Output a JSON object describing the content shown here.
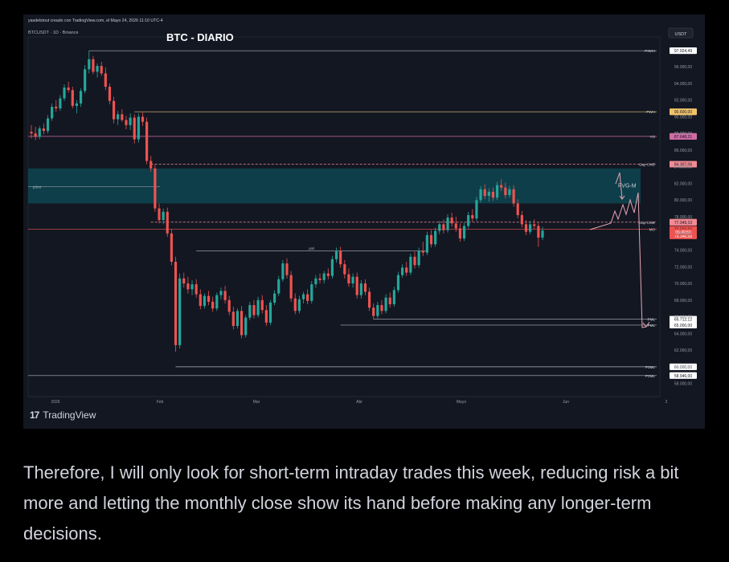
{
  "header": {
    "credit": "yasdelstout creado con TradingView.com, el Mayo 24, 2026 11:10 UTC-4",
    "symbol": "BTCUSDT · 1D · Binance",
    "title": "BTC - DIARIO",
    "currency": "USDT"
  },
  "footer": {
    "brand": "TradingView",
    "caption": "Therefore, I will only look for short-term intraday trades this week, reducing risk a bit more and letting the monthly close show its hand before making any longer-term decisions."
  },
  "colors": {
    "background": "#131722",
    "bull": "#26a69a",
    "bear": "#ef5350",
    "fvg": "#0e4c57",
    "arrow": "#e6a5b4"
  },
  "chart_data": {
    "type": "candlestick",
    "title": "BTC - DIARIO",
    "ylim": [
      57000,
      99000
    ],
    "y_ticks": [
      "96.000,00",
      "94.000,00",
      "92.000,00",
      "90.000,00",
      "88.000,00",
      "86.000,00",
      "84.000,00",
      "82.000,00",
      "80.000,00",
      "78.000,00",
      "76.000,00",
      "74.000,00",
      "72.000,00",
      "70.000,00",
      "68.000,00",
      "66.000,00",
      "64.000,00",
      "62.000,00",
      "60.000,00",
      "58.000,00"
    ],
    "x_labels": [
      "2026",
      "Feb",
      "Mar",
      "Abr",
      "Mayo",
      "Jun",
      "2"
    ],
    "levels": [
      {
        "name": "P3MH",
        "price": 97924.49,
        "label": "97.924,49",
        "color": "#b2b5be",
        "style": "solid"
      },
      {
        "name": "PWH",
        "price": 90600,
        "label": "90.600,00",
        "color": "#f0c36b",
        "style": "solid"
      },
      {
        "name": "YO",
        "price": 87648.21,
        "label": "87.648,21",
        "color": "#d16ba5",
        "style": "solid"
      },
      {
        "name": "Gap CME",
        "price": 84307.06,
        "label": "84.307,06",
        "color": "#f28b94",
        "style": "dashed"
      },
      {
        "name": "Gap CME",
        "price": 77349.1,
        "label": "77.349,10",
        "color": "#f28b94",
        "style": "dashed"
      },
      {
        "name": "MO",
        "price": 76500,
        "label": "76.500,00",
        "color": "#ef5350",
        "style": "solid"
      },
      {
        "name": "PML",
        "price": 65712.12,
        "label": "65.712,12",
        "color": "#b2b5be",
        "style": "solid"
      },
      {
        "name": "PML",
        "price": 65000,
        "label": "65.000,00",
        "color": "#b2b5be",
        "style": "solid"
      },
      {
        "name": "P3ML",
        "price": 60000,
        "label": "60.000,00",
        "color": "#b2b5be",
        "style": "solid"
      },
      {
        "name": "P3ML",
        "price": 58946,
        "label": "58.946,00",
        "color": "#b2b5be",
        "style": "solid"
      }
    ],
    "extra_price_labels": [
      {
        "text": "76.346,58",
        "price": 75700,
        "color": "#ef5350"
      },
      {
        "text": "06:49:50",
        "price": 76150,
        "color": "#ef5350"
      }
    ],
    "zone": {
      "label": "FVG-M",
      "top": 83800,
      "bottom": 79600
    },
    "pdh_label": "p3mi",
    "pml_label": "pml",
    "candles": [
      {
        "o": 88200,
        "h": 89000,
        "l": 87400,
        "c": 88000
      },
      {
        "o": 88000,
        "h": 88800,
        "l": 87200,
        "c": 87600
      },
      {
        "o": 87600,
        "h": 88900,
        "l": 87300,
        "c": 88600
      },
      {
        "o": 88600,
        "h": 89200,
        "l": 87900,
        "c": 88300
      },
      {
        "o": 88300,
        "h": 90200,
        "l": 88000,
        "c": 89800
      },
      {
        "o": 89800,
        "h": 91600,
        "l": 89500,
        "c": 91200
      },
      {
        "o": 91200,
        "h": 92000,
        "l": 90600,
        "c": 91000
      },
      {
        "o": 91000,
        "h": 92600,
        "l": 90700,
        "c": 92200
      },
      {
        "o": 92200,
        "h": 93900,
        "l": 91900,
        "c": 93500
      },
      {
        "o": 93500,
        "h": 94200,
        "l": 92900,
        "c": 93200
      },
      {
        "o": 93200,
        "h": 93600,
        "l": 91000,
        "c": 91300
      },
      {
        "o": 91300,
        "h": 92000,
        "l": 90400,
        "c": 91600
      },
      {
        "o": 91600,
        "h": 93400,
        "l": 91200,
        "c": 93100
      },
      {
        "o": 93100,
        "h": 96200,
        "l": 92800,
        "c": 95700
      },
      {
        "o": 95700,
        "h": 97924,
        "l": 95200,
        "c": 96900
      },
      {
        "o": 96900,
        "h": 97300,
        "l": 95100,
        "c": 95400
      },
      {
        "o": 95400,
        "h": 96400,
        "l": 94700,
        "c": 96100
      },
      {
        "o": 96100,
        "h": 96600,
        "l": 94900,
        "c": 95200
      },
      {
        "o": 95200,
        "h": 95900,
        "l": 93200,
        "c": 93600
      },
      {
        "o": 93600,
        "h": 94000,
        "l": 91500,
        "c": 91900
      },
      {
        "o": 91900,
        "h": 92400,
        "l": 89200,
        "c": 89700
      },
      {
        "o": 89700,
        "h": 90700,
        "l": 89000,
        "c": 90300
      },
      {
        "o": 90300,
        "h": 90900,
        "l": 89400,
        "c": 89600
      },
      {
        "o": 89600,
        "h": 90100,
        "l": 88500,
        "c": 89000
      },
      {
        "o": 89000,
        "h": 90400,
        "l": 88400,
        "c": 89900
      },
      {
        "o": 89900,
        "h": 90300,
        "l": 86800,
        "c": 87300
      },
      {
        "o": 87300,
        "h": 90400,
        "l": 86900,
        "c": 90000
      },
      {
        "o": 90000,
        "h": 90500,
        "l": 88900,
        "c": 89400
      },
      {
        "o": 89400,
        "h": 89900,
        "l": 84300,
        "c": 84700
      },
      {
        "o": 84700,
        "h": 85300,
        "l": 83400,
        "c": 83800
      },
      {
        "o": 83800,
        "h": 84300,
        "l": 78600,
        "c": 79000
      },
      {
        "o": 79000,
        "h": 79600,
        "l": 77200,
        "c": 77600
      },
      {
        "o": 77600,
        "h": 79000,
        "l": 77100,
        "c": 78600
      },
      {
        "o": 78600,
        "h": 79100,
        "l": 75600,
        "c": 76000
      },
      {
        "o": 76000,
        "h": 76500,
        "l": 72200,
        "c": 72600
      },
      {
        "o": 72600,
        "h": 73200,
        "l": 61800,
        "c": 62600
      },
      {
        "o": 62600,
        "h": 71200,
        "l": 62200,
        "c": 70600
      },
      {
        "o": 70600,
        "h": 71300,
        "l": 69500,
        "c": 70000
      },
      {
        "o": 70000,
        "h": 70800,
        "l": 68800,
        "c": 69300
      },
      {
        "o": 69300,
        "h": 70400,
        "l": 68600,
        "c": 69900
      },
      {
        "o": 69900,
        "h": 70500,
        "l": 68300,
        "c": 68700
      },
      {
        "o": 68700,
        "h": 69300,
        "l": 66900,
        "c": 67300
      },
      {
        "o": 67300,
        "h": 68800,
        "l": 67000,
        "c": 68500
      },
      {
        "o": 68500,
        "h": 69100,
        "l": 67400,
        "c": 67800
      },
      {
        "o": 67800,
        "h": 68400,
        "l": 66600,
        "c": 67000
      },
      {
        "o": 67000,
        "h": 68900,
        "l": 66700,
        "c": 68600
      },
      {
        "o": 68600,
        "h": 69500,
        "l": 68100,
        "c": 69100
      },
      {
        "o": 69100,
        "h": 69700,
        "l": 67600,
        "c": 68000
      },
      {
        "o": 68000,
        "h": 68500,
        "l": 66200,
        "c": 66600
      },
      {
        "o": 66600,
        "h": 67200,
        "l": 64500,
        "c": 64900
      },
      {
        "o": 64900,
        "h": 67000,
        "l": 64600,
        "c": 66700
      },
      {
        "o": 66700,
        "h": 67300,
        "l": 63400,
        "c": 63800
      },
      {
        "o": 63800,
        "h": 66200,
        "l": 63500,
        "c": 65900
      },
      {
        "o": 65900,
        "h": 67800,
        "l": 65600,
        "c": 67400
      },
      {
        "o": 67400,
        "h": 68000,
        "l": 65800,
        "c": 66200
      },
      {
        "o": 66200,
        "h": 68400,
        "l": 65900,
        "c": 68000
      },
      {
        "o": 68000,
        "h": 68600,
        "l": 66400,
        "c": 66800
      },
      {
        "o": 66800,
        "h": 67400,
        "l": 64900,
        "c": 65300
      },
      {
        "o": 65300,
        "h": 68000,
        "l": 65000,
        "c": 67700
      },
      {
        "o": 67700,
        "h": 69200,
        "l": 67400,
        "c": 68800
      },
      {
        "o": 68800,
        "h": 70900,
        "l": 68500,
        "c": 70500
      },
      {
        "o": 70500,
        "h": 72800,
        "l": 70200,
        "c": 72400
      },
      {
        "o": 72400,
        "h": 73000,
        "l": 70600,
        "c": 71000
      },
      {
        "o": 71000,
        "h": 71500,
        "l": 67800,
        "c": 68200
      },
      {
        "o": 68200,
        "h": 68800,
        "l": 66300,
        "c": 66700
      },
      {
        "o": 66700,
        "h": 68500,
        "l": 66400,
        "c": 68100
      },
      {
        "o": 68100,
        "h": 69000,
        "l": 67600,
        "c": 68700
      },
      {
        "o": 68700,
        "h": 69300,
        "l": 67500,
        "c": 67900
      },
      {
        "o": 67900,
        "h": 70300,
        "l": 67600,
        "c": 69900
      },
      {
        "o": 69900,
        "h": 71000,
        "l": 69500,
        "c": 70600
      },
      {
        "o": 70600,
        "h": 71200,
        "l": 70000,
        "c": 70400
      },
      {
        "o": 70400,
        "h": 71500,
        "l": 70000,
        "c": 71200
      },
      {
        "o": 71200,
        "h": 71800,
        "l": 70500,
        "c": 70900
      },
      {
        "o": 70900,
        "h": 73300,
        "l": 70600,
        "c": 72900
      },
      {
        "o": 72900,
        "h": 74300,
        "l": 72500,
        "c": 73900
      },
      {
        "o": 73900,
        "h": 74400,
        "l": 71900,
        "c": 72300
      },
      {
        "o": 72300,
        "h": 72800,
        "l": 70600,
        "c": 71100
      },
      {
        "o": 71100,
        "h": 71800,
        "l": 69600,
        "c": 70000
      },
      {
        "o": 70000,
        "h": 71200,
        "l": 69500,
        "c": 70800
      },
      {
        "o": 70800,
        "h": 71300,
        "l": 68200,
        "c": 68600
      },
      {
        "o": 68600,
        "h": 70400,
        "l": 68200,
        "c": 70000
      },
      {
        "o": 70000,
        "h": 70500,
        "l": 68600,
        "c": 69000
      },
      {
        "o": 69000,
        "h": 69500,
        "l": 66700,
        "c": 67100
      },
      {
        "o": 67100,
        "h": 67600,
        "l": 65700,
        "c": 66100
      },
      {
        "o": 66100,
        "h": 67800,
        "l": 65800,
        "c": 67400
      },
      {
        "o": 67400,
        "h": 68000,
        "l": 66300,
        "c": 66700
      },
      {
        "o": 66700,
        "h": 68700,
        "l": 66400,
        "c": 68300
      },
      {
        "o": 68300,
        "h": 68900,
        "l": 67100,
        "c": 67500
      },
      {
        "o": 67500,
        "h": 69600,
        "l": 67200,
        "c": 69200
      },
      {
        "o": 69200,
        "h": 71400,
        "l": 68900,
        "c": 71000
      },
      {
        "o": 71000,
        "h": 72300,
        "l": 70700,
        "c": 71900
      },
      {
        "o": 71900,
        "h": 72600,
        "l": 70900,
        "c": 71300
      },
      {
        "o": 71300,
        "h": 73600,
        "l": 71000,
        "c": 73200
      },
      {
        "o": 73200,
        "h": 73800,
        "l": 71800,
        "c": 72200
      },
      {
        "o": 72200,
        "h": 74300,
        "l": 71900,
        "c": 73900
      },
      {
        "o": 73900,
        "h": 75000,
        "l": 73300,
        "c": 73700
      },
      {
        "o": 73700,
        "h": 76200,
        "l": 73400,
        "c": 75800
      },
      {
        "o": 75800,
        "h": 76400,
        "l": 74300,
        "c": 74700
      },
      {
        "o": 74700,
        "h": 76700,
        "l": 74400,
        "c": 76300
      },
      {
        "o": 76300,
        "h": 77500,
        "l": 75900,
        "c": 77100
      },
      {
        "o": 77100,
        "h": 77700,
        "l": 76000,
        "c": 76400
      },
      {
        "o": 76400,
        "h": 78300,
        "l": 76100,
        "c": 77900
      },
      {
        "o": 77900,
        "h": 78500,
        "l": 76800,
        "c": 77200
      },
      {
        "o": 77200,
        "h": 78000,
        "l": 76200,
        "c": 76600
      },
      {
        "o": 76600,
        "h": 77200,
        "l": 75000,
        "c": 75400
      },
      {
        "o": 75400,
        "h": 77300,
        "l": 75100,
        "c": 76900
      },
      {
        "o": 76900,
        "h": 78600,
        "l": 76600,
        "c": 78200
      },
      {
        "o": 78200,
        "h": 78900,
        "l": 77400,
        "c": 77800
      },
      {
        "o": 77800,
        "h": 80400,
        "l": 77500,
        "c": 80000
      },
      {
        "o": 80000,
        "h": 81700,
        "l": 79700,
        "c": 81300
      },
      {
        "o": 81300,
        "h": 81900,
        "l": 80100,
        "c": 80500
      },
      {
        "o": 80500,
        "h": 81400,
        "l": 79800,
        "c": 81000
      },
      {
        "o": 81000,
        "h": 81500,
        "l": 79900,
        "c": 80300
      },
      {
        "o": 80300,
        "h": 82200,
        "l": 80000,
        "c": 81800
      },
      {
        "o": 81800,
        "h": 82500,
        "l": 81100,
        "c": 81500
      },
      {
        "o": 81500,
        "h": 82100,
        "l": 80200,
        "c": 80600
      },
      {
        "o": 80600,
        "h": 81700,
        "l": 80300,
        "c": 81300
      },
      {
        "o": 81300,
        "h": 81800,
        "l": 79200,
        "c": 79600
      },
      {
        "o": 79600,
        "h": 80100,
        "l": 77800,
        "c": 78200
      },
      {
        "o": 78200,
        "h": 78700,
        "l": 76700,
        "c": 77100
      },
      {
        "o": 77100,
        "h": 77600,
        "l": 75800,
        "c": 76200
      },
      {
        "o": 76200,
        "h": 77500,
        "l": 75900,
        "c": 77100
      },
      {
        "o": 77100,
        "h": 77700,
        "l": 76500,
        "c": 76900
      },
      {
        "o": 76900,
        "h": 77300,
        "l": 74400,
        "c": 75500
      },
      {
        "o": 75500,
        "h": 76800,
        "l": 75200,
        "c": 76350
      }
    ],
    "projection": [
      [
        731,
        260
      ],
      [
        736,
        245
      ],
      [
        740,
        255
      ],
      [
        746,
        237
      ],
      [
        750,
        249
      ],
      [
        755,
        231
      ],
      [
        760,
        247
      ],
      [
        765,
        222
      ],
      [
        770,
        390
      ],
      [
        775,
        389
      ]
    ],
    "projection_start": [
      705,
      268
    ],
    "projection_small": [
      [
        737,
        211
      ],
      [
        742,
        197
      ],
      [
        745,
        230
      ]
    ]
  }
}
